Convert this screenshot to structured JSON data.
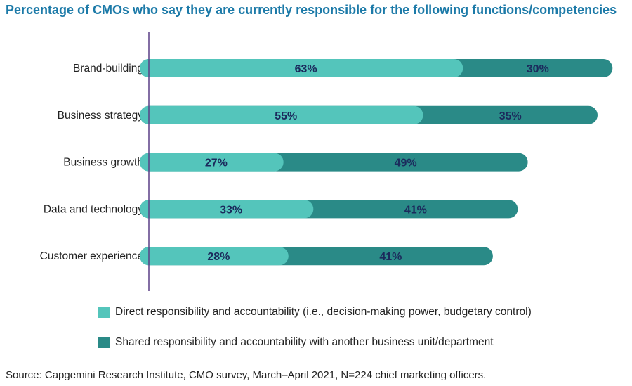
{
  "page": {
    "title": "Percentage of CMOs who say they are currently responsible for the following functions/competencies",
    "source": "Source: Capgemini Research Institute, CMO survey, March–April 2021, N=224 chief marketing officers."
  },
  "colors": {
    "title": "#1c7aa8",
    "direct": "#54c5bb",
    "shared": "#2a8a87",
    "axis": "#5a3f86",
    "label_text": "#1b2a5c"
  },
  "chart_data": {
    "type": "bar",
    "orientation": "horizontal",
    "stacked": true,
    "title": "Percentage of CMOs who say they are currently responsible for the following functions/competencies",
    "categories": [
      "Brand-building",
      "Business strategy",
      "Business growth",
      "Data and technology",
      "Customer experience"
    ],
    "series": [
      {
        "name": "Direct responsibility and accountability (i.e., decision-making power, budgetary control)",
        "values": [
          63,
          55,
          27,
          33,
          28
        ],
        "labels": [
          "63%",
          "55%",
          "27%",
          "33%",
          "28%"
        ]
      },
      {
        "name": "Shared responsibility and accountability with another business unit/department",
        "values": [
          30,
          35,
          49,
          41,
          41
        ],
        "labels": [
          "30%",
          "35%",
          "49%",
          "41%",
          "41%"
        ]
      }
    ],
    "xlim": [
      0,
      93
    ],
    "grid": false,
    "legend": "bottom"
  }
}
